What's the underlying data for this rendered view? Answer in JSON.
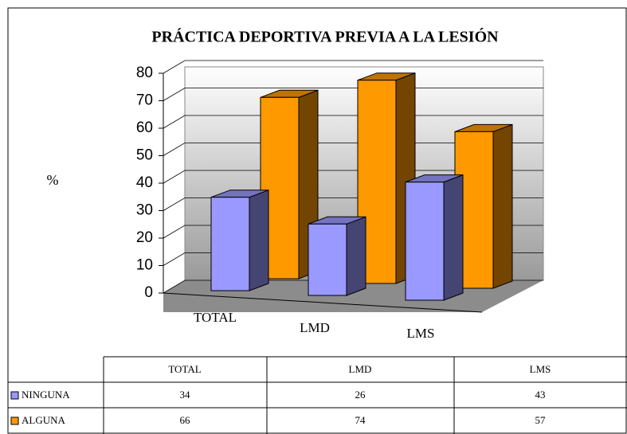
{
  "chart_data": {
    "type": "bar3d",
    "title": "PRÁCTICA DEPORTIVA PREVIA A LA LESIÓN",
    "y_label": "%",
    "categories": [
      "TOTAL",
      "LMD",
      "LMS"
    ],
    "series": [
      {
        "name": "NINGUNA",
        "color": "#9999ff",
        "values": [
          34,
          26,
          43
        ]
      },
      {
        "name": "ALGUNA",
        "color": "#ff9900",
        "values": [
          66,
          74,
          57
        ]
      }
    ],
    "ylim": [
      0,
      80
    ],
    "yticks": [
      0,
      10,
      20,
      30,
      40,
      50,
      60,
      70,
      80
    ],
    "grid": true
  }
}
